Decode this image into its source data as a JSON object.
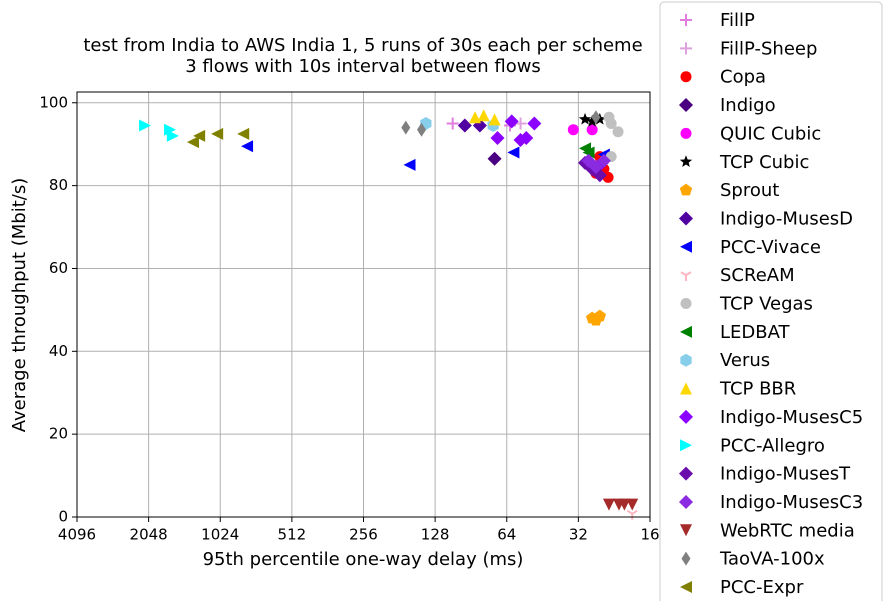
{
  "chart_data": {
    "type": "scatter",
    "title": [
      "test from India to AWS India 1, 5 runs of 30s each per scheme",
      "3 flows with 10s interval between flows"
    ],
    "xlabel": "95th percentile one-way delay (ms)",
    "ylabel": "Average throughput (Mbit/s)",
    "xscale": "log2",
    "xlim": [
      4096,
      16
    ],
    "xticks": [
      4096,
      2048,
      1024,
      512,
      256,
      128,
      64,
      32,
      16
    ],
    "ylim": [
      0,
      102.6
    ],
    "yticks": [
      0,
      20,
      40,
      60,
      80,
      100
    ],
    "grid": true,
    "legend": "outside right",
    "series": [
      {
        "name": "FillP",
        "color": "#e07ee0",
        "marker": "plus",
        "x": [
          108,
          62
        ],
        "values": [
          95,
          94.5
        ]
      },
      {
        "name": "FillP-Sheep",
        "color": "#dda0dd",
        "marker": "plus",
        "x": [
          56
        ],
        "values": [
          95
        ]
      },
      {
        "name": "Copa",
        "color": "#ff0000",
        "marker": "circle",
        "x": [
          27,
          24,
          26,
          25
        ],
        "values": [
          83,
          82,
          87,
          84
        ]
      },
      {
        "name": "Indigo",
        "color": "#4b0082",
        "marker": "diamond",
        "x": [
          72
        ],
        "values": [
          86.5
        ]
      },
      {
        "name": "QUIC Cubic",
        "color": "#ff00ff",
        "marker": "circle",
        "x": [
          33.6,
          28
        ],
        "values": [
          93.5,
          93.5
        ]
      },
      {
        "name": "TCP Cubic",
        "color": "#000000",
        "marker": "star",
        "x": [
          30,
          28,
          26
        ],
        "values": [
          96,
          95.5,
          96
        ]
      },
      {
        "name": "Sprout",
        "color": "#ffa500",
        "marker": "pentagon",
        "x": [
          28,
          26,
          27
        ],
        "values": [
          48,
          48.5,
          47.5
        ]
      },
      {
        "name": "Indigo-MusesD",
        "color": "#5000a0",
        "marker": "diamond",
        "x": [
          96,
          83
        ],
        "values": [
          94.5,
          94.5
        ]
      },
      {
        "name": "PCC-Vivace",
        "color": "#0000ff",
        "marker": "triangle-left",
        "x": [
          790,
          164,
          60,
          25
        ],
        "values": [
          89.5,
          85,
          88,
          87.5
        ]
      },
      {
        "name": "SCReAM",
        "color": "#ffb6c1",
        "marker": "tri-down",
        "x": [
          19
        ],
        "values": [
          0.8
        ]
      },
      {
        "name": "TCP Vegas",
        "color": "#c0c0c0",
        "marker": "circle",
        "x": [
          23.8,
          23.3,
          21.8,
          23.3
        ],
        "values": [
          96.5,
          95,
          93,
          87
        ]
      },
      {
        "name": "LEDBAT",
        "color": "#008000",
        "marker": "triangle-left",
        "x": [
          30,
          29.7,
          29
        ],
        "values": [
          89,
          85,
          88
        ]
      },
      {
        "name": "Verus",
        "color": "#87ceeb",
        "marker": "hexagon",
        "x": [
          140,
          73
        ],
        "values": [
          95,
          94.5
        ]
      },
      {
        "name": "TCP BBR",
        "color": "#ffd700",
        "marker": "triangle-up",
        "x": [
          87,
          80,
          72
        ],
        "values": [
          96.5,
          97,
          96
        ]
      },
      {
        "name": "Indigo-MusesC5",
        "color": "#8b00ff",
        "marker": "diamond",
        "x": [
          61,
          49,
          70,
          56,
          53,
          25.5
        ],
        "values": [
          95.5,
          95,
          91.5,
          91,
          91.5,
          85.5
        ]
      },
      {
        "name": "PCC-Allegro",
        "color": "#00ffff",
        "marker": "triangle-right",
        "x": [
          2120,
          1665,
          1620
        ],
        "values": [
          94.5,
          93.5,
          92
        ]
      },
      {
        "name": "Indigo-MusesT",
        "color": "#6a0dad",
        "marker": "diamond",
        "x": [
          30,
          28,
          26
        ],
        "values": [
          85.5,
          84,
          82.5
        ]
      },
      {
        "name": "Indigo-MusesC3",
        "color": "#8a2be2",
        "marker": "diamond",
        "x": [
          29,
          27,
          25
        ],
        "values": [
          86,
          84.5,
          86
        ]
      },
      {
        "name": "WebRTC media",
        "color": "#a52a2a",
        "marker": "triangle-down",
        "x": [
          23.8,
          21.6,
          20.5,
          19
        ],
        "values": [
          3,
          3,
          3,
          3
        ]
      },
      {
        "name": "TaoVA-100x",
        "color": "#808080",
        "marker": "thin-diamond",
        "x": [
          170,
          146,
          27
        ],
        "values": [
          94,
          93.5,
          96.5
        ]
      },
      {
        "name": "PCC-Expr",
        "color": "#808000",
        "marker": "triangle-left",
        "x": [
          1333,
          1256,
          1055,
          820
        ],
        "values": [
          90.5,
          92,
          92.5,
          92.5
        ]
      }
    ]
  }
}
